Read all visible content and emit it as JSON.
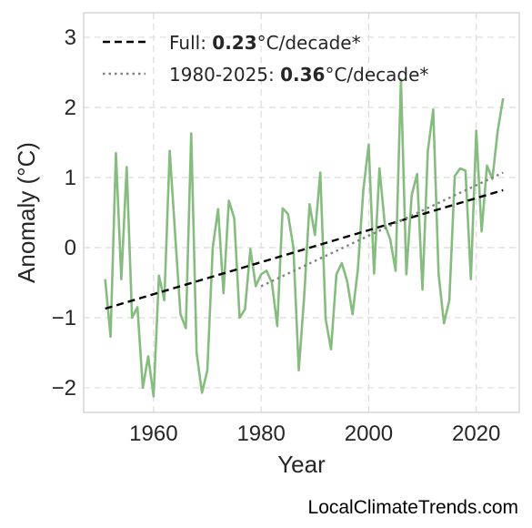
{
  "credit": "LocalClimateTrends.com",
  "chart_data": {
    "type": "line",
    "xlabel": "Year",
    "ylabel": "Anomaly (°C)",
    "xlim": [
      1947,
      2028
    ],
    "ylim": [
      -2.35,
      3.35
    ],
    "xticks": [
      1960,
      1980,
      2000,
      2020
    ],
    "yticks": [
      -2,
      -1,
      0,
      1,
      2,
      3
    ],
    "ytick_labels": [
      "−2",
      "−1",
      "0",
      "1",
      "2",
      "3"
    ],
    "grid": true,
    "legend_position": "top-left",
    "colors": {
      "series": "#86bc7f",
      "full_trend": "#000000",
      "recent_trend": "#808080"
    },
    "series": [
      {
        "x": [
          1951,
          1952,
          1953,
          1954,
          1955,
          1956,
          1957,
          1958,
          1959,
          1960,
          1961,
          1962,
          1963,
          1964,
          1965,
          1966,
          1967,
          1968,
          1969,
          1970,
          1971,
          1972,
          1973,
          1974,
          1975,
          1976,
          1977,
          1978,
          1979,
          1980,
          1981,
          1982,
          1983,
          1984,
          1985,
          1986,
          1987,
          1988,
          1989,
          1990,
          1991,
          1992,
          1993,
          1994,
          1995,
          1996,
          1997,
          1998,
          1999,
          2000,
          2001,
          2002,
          2003,
          2004,
          2005,
          2006,
          2007,
          2008,
          2009,
          2010,
          2011,
          2012,
          2013,
          2014,
          2015,
          2016,
          2017,
          2018,
          2019,
          2020,
          2021,
          2022,
          2023,
          2024,
          2025
        ],
        "values": [
          -0.45,
          -1.27,
          1.35,
          -0.45,
          1.15,
          -1.0,
          -0.85,
          -2.0,
          -1.55,
          -2.12,
          -0.4,
          -0.75,
          1.38,
          0.2,
          -0.95,
          -1.15,
          1.63,
          -1.5,
          -2.07,
          -1.75,
          0.0,
          0.55,
          -0.65,
          0.67,
          0.42,
          -1.0,
          -0.88,
          -0.02,
          -0.55,
          -0.38,
          -0.33,
          -0.5,
          -1.12,
          0.56,
          0.48,
          0.0,
          -1.75,
          -0.7,
          0.62,
          0.18,
          1.07,
          -1.02,
          -1.45,
          -0.38,
          -0.22,
          -0.48,
          -0.95,
          -0.3,
          0.82,
          1.47,
          -0.37,
          1.13,
          0.33,
          0.12,
          -0.33,
          2.4,
          -0.38,
          0.75,
          1.05,
          -0.6,
          1.38,
          1.97,
          -0.38,
          -1.08,
          -0.75,
          1.02,
          1.13,
          1.1,
          -0.45,
          1.67,
          0.23,
          1.17,
          0.98,
          1.67,
          2.13
        ]
      }
    ],
    "trends": [
      {
        "label_prefix": "Full: ",
        "label_value": "0.23",
        "label_suffix": "°C/decade*",
        "x": [
          1951,
          2025
        ],
        "y": [
          -0.87,
          0.82
        ],
        "style": "dashed"
      },
      {
        "label_prefix": "1980-2025: ",
        "label_value": "0.36",
        "label_suffix": "°C/decade*",
        "x": [
          1980,
          2025
        ],
        "y": [
          -0.55,
          1.07
        ],
        "style": "dotted"
      }
    ]
  }
}
